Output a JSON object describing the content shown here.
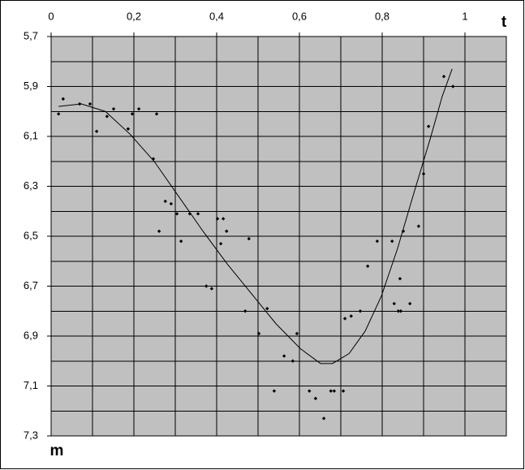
{
  "chart_data": {
    "type": "scatter",
    "x_label": "t",
    "y_label": "m",
    "xlim": [
      0,
      1.1
    ],
    "ylim": [
      5.7,
      7.3
    ],
    "y_reversed": true,
    "x_axis_position": "top",
    "xticks": [
      0,
      {
        "value": 0.2,
        "label": "0,2"
      },
      {
        "value": 0.4,
        "label": "0,4"
      },
      {
        "value": 0.6,
        "label": "0,6"
      },
      {
        "value": 0.8,
        "label": "0,8"
      },
      1
    ],
    "x_minor_grid": [
      0.1,
      0.3,
      0.5,
      0.7,
      0.9
    ],
    "yticks": [
      {
        "value": 5.7,
        "label": "5,7"
      },
      {
        "value": 5.9,
        "label": "5,9"
      },
      {
        "value": 6.1,
        "label": "6,1"
      },
      {
        "value": 6.3,
        "label": "6,3"
      },
      {
        "value": 6.5,
        "label": "6,5"
      },
      {
        "value": 6.7,
        "label": "6,7"
      },
      {
        "value": 6.9,
        "label": "6,9"
      },
      {
        "value": 7.1,
        "label": "7,1"
      },
      {
        "value": 7.3,
        "label": "7,3"
      }
    ],
    "y_minor_grid": [
      5.8,
      6.0,
      6.2,
      6.4,
      6.6,
      6.8,
      7.0,
      7.2
    ],
    "grid": true,
    "plot_background": "#c0c0c0",
    "series": [
      {
        "mode": "markers",
        "color": "#000000",
        "x": [
          0.018,
          0.029,
          0.069,
          0.094,
          0.11,
          0.135,
          0.151,
          0.186,
          0.196,
          0.212,
          0.255,
          0.247,
          0.261,
          0.276,
          0.29,
          0.304,
          0.314,
          0.335,
          0.355,
          0.375,
          0.388,
          0.402,
          0.416,
          0.41,
          0.424,
          0.469,
          0.478,
          0.502,
          0.522,
          0.539,
          0.563,
          0.584,
          0.594,
          0.624,
          0.639,
          0.659,
          0.676,
          0.684,
          0.706,
          0.71,
          0.725,
          0.747,
          0.765,
          0.788,
          0.824,
          0.829,
          0.839,
          0.845,
          0.843,
          0.851,
          0.867,
          0.888,
          0.9,
          0.912,
          0.949,
          0.971
        ],
        "values": [
          6.01,
          5.95,
          5.97,
          5.97,
          6.08,
          6.02,
          5.99,
          6.07,
          6.01,
          5.99,
          6.01,
          6.19,
          6.48,
          6.36,
          6.37,
          6.41,
          6.52,
          6.41,
          6.41,
          6.7,
          6.71,
          6.43,
          6.43,
          6.53,
          6.48,
          6.8,
          6.51,
          6.89,
          6.79,
          7.12,
          6.98,
          7.0,
          6.89,
          7.12,
          7.15,
          7.23,
          7.12,
          7.12,
          7.12,
          6.83,
          6.82,
          6.8,
          6.62,
          6.52,
          6.52,
          6.77,
          6.8,
          6.8,
          6.67,
          6.48,
          6.77,
          6.46,
          6.25,
          6.06,
          5.86,
          5.9
        ]
      },
      {
        "mode": "line",
        "color": "#000000",
        "x": [
          0.018,
          0.073,
          0.131,
          0.19,
          0.249,
          0.308,
          0.367,
          0.425,
          0.484,
          0.543,
          0.602,
          0.651,
          0.68,
          0.72,
          0.759,
          0.798,
          0.837,
          0.876,
          0.916,
          0.945,
          0.969
        ],
        "values": [
          5.98,
          5.97,
          6.0,
          6.09,
          6.2,
          6.34,
          6.48,
          6.61,
          6.73,
          6.85,
          6.95,
          7.01,
          7.01,
          6.97,
          6.88,
          6.74,
          6.55,
          6.33,
          6.11,
          5.94,
          5.83
        ]
      }
    ]
  }
}
